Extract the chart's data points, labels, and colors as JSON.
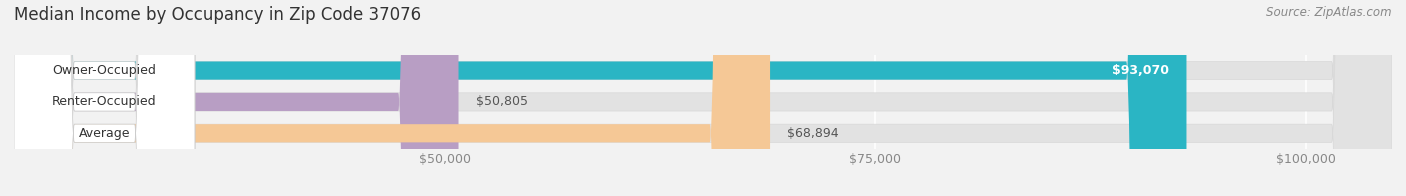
{
  "title": "Median Income by Occupancy in Zip Code 37076",
  "source": "Source: ZipAtlas.com",
  "categories": [
    "Owner-Occupied",
    "Renter-Occupied",
    "Average"
  ],
  "values": [
    93070,
    50805,
    68894
  ],
  "bar_colors": [
    "#2ab5c4",
    "#b89ec4",
    "#f5c896"
  ],
  "label_values": [
    "$93,070",
    "$50,805",
    "$68,894"
  ],
  "xlim": [
    25000,
    105000
  ],
  "xticks": [
    50000,
    75000,
    100000
  ],
  "xtick_labels": [
    "$50,000",
    "$75,000",
    "$100,000"
  ],
  "background_color": "#f2f2f2",
  "bar_bg_color": "#e2e2e2",
  "bar_bg_border": "#d8d8d8",
  "title_fontsize": 12,
  "source_fontsize": 8.5,
  "bar_label_fontsize": 9,
  "category_label_fontsize": 9,
  "bar_height": 0.58,
  "figsize": [
    14.06,
    1.96
  ],
  "dpi": 100
}
